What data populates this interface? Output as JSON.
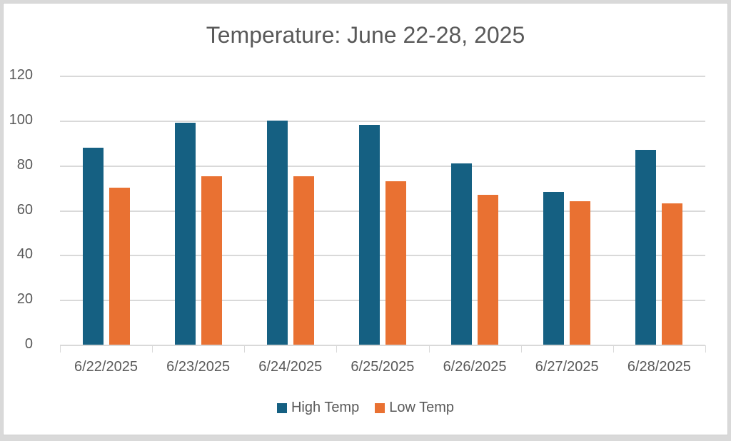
{
  "chart_data": {
    "type": "bar",
    "title": "Temperature:  June 22-28, 2025",
    "xlabel": "",
    "ylabel": "",
    "ylim": [
      0,
      120
    ],
    "yticks": [
      0,
      20,
      40,
      60,
      80,
      100,
      120
    ],
    "grid": true,
    "legend_position": "bottom",
    "categories": [
      "6/22/2025",
      "6/23/2025",
      "6/24/2025",
      "6/25/2025",
      "6/26/2025",
      "6/27/2025",
      "6/28/2025"
    ],
    "series": [
      {
        "name": "High Temp",
        "color": "#156082",
        "values": [
          88,
          99,
          100,
          98,
          81,
          68,
          87
        ]
      },
      {
        "name": "Low Temp",
        "color": "#E97132",
        "values": [
          70,
          75,
          75,
          73,
          67,
          64,
          63
        ]
      }
    ]
  }
}
